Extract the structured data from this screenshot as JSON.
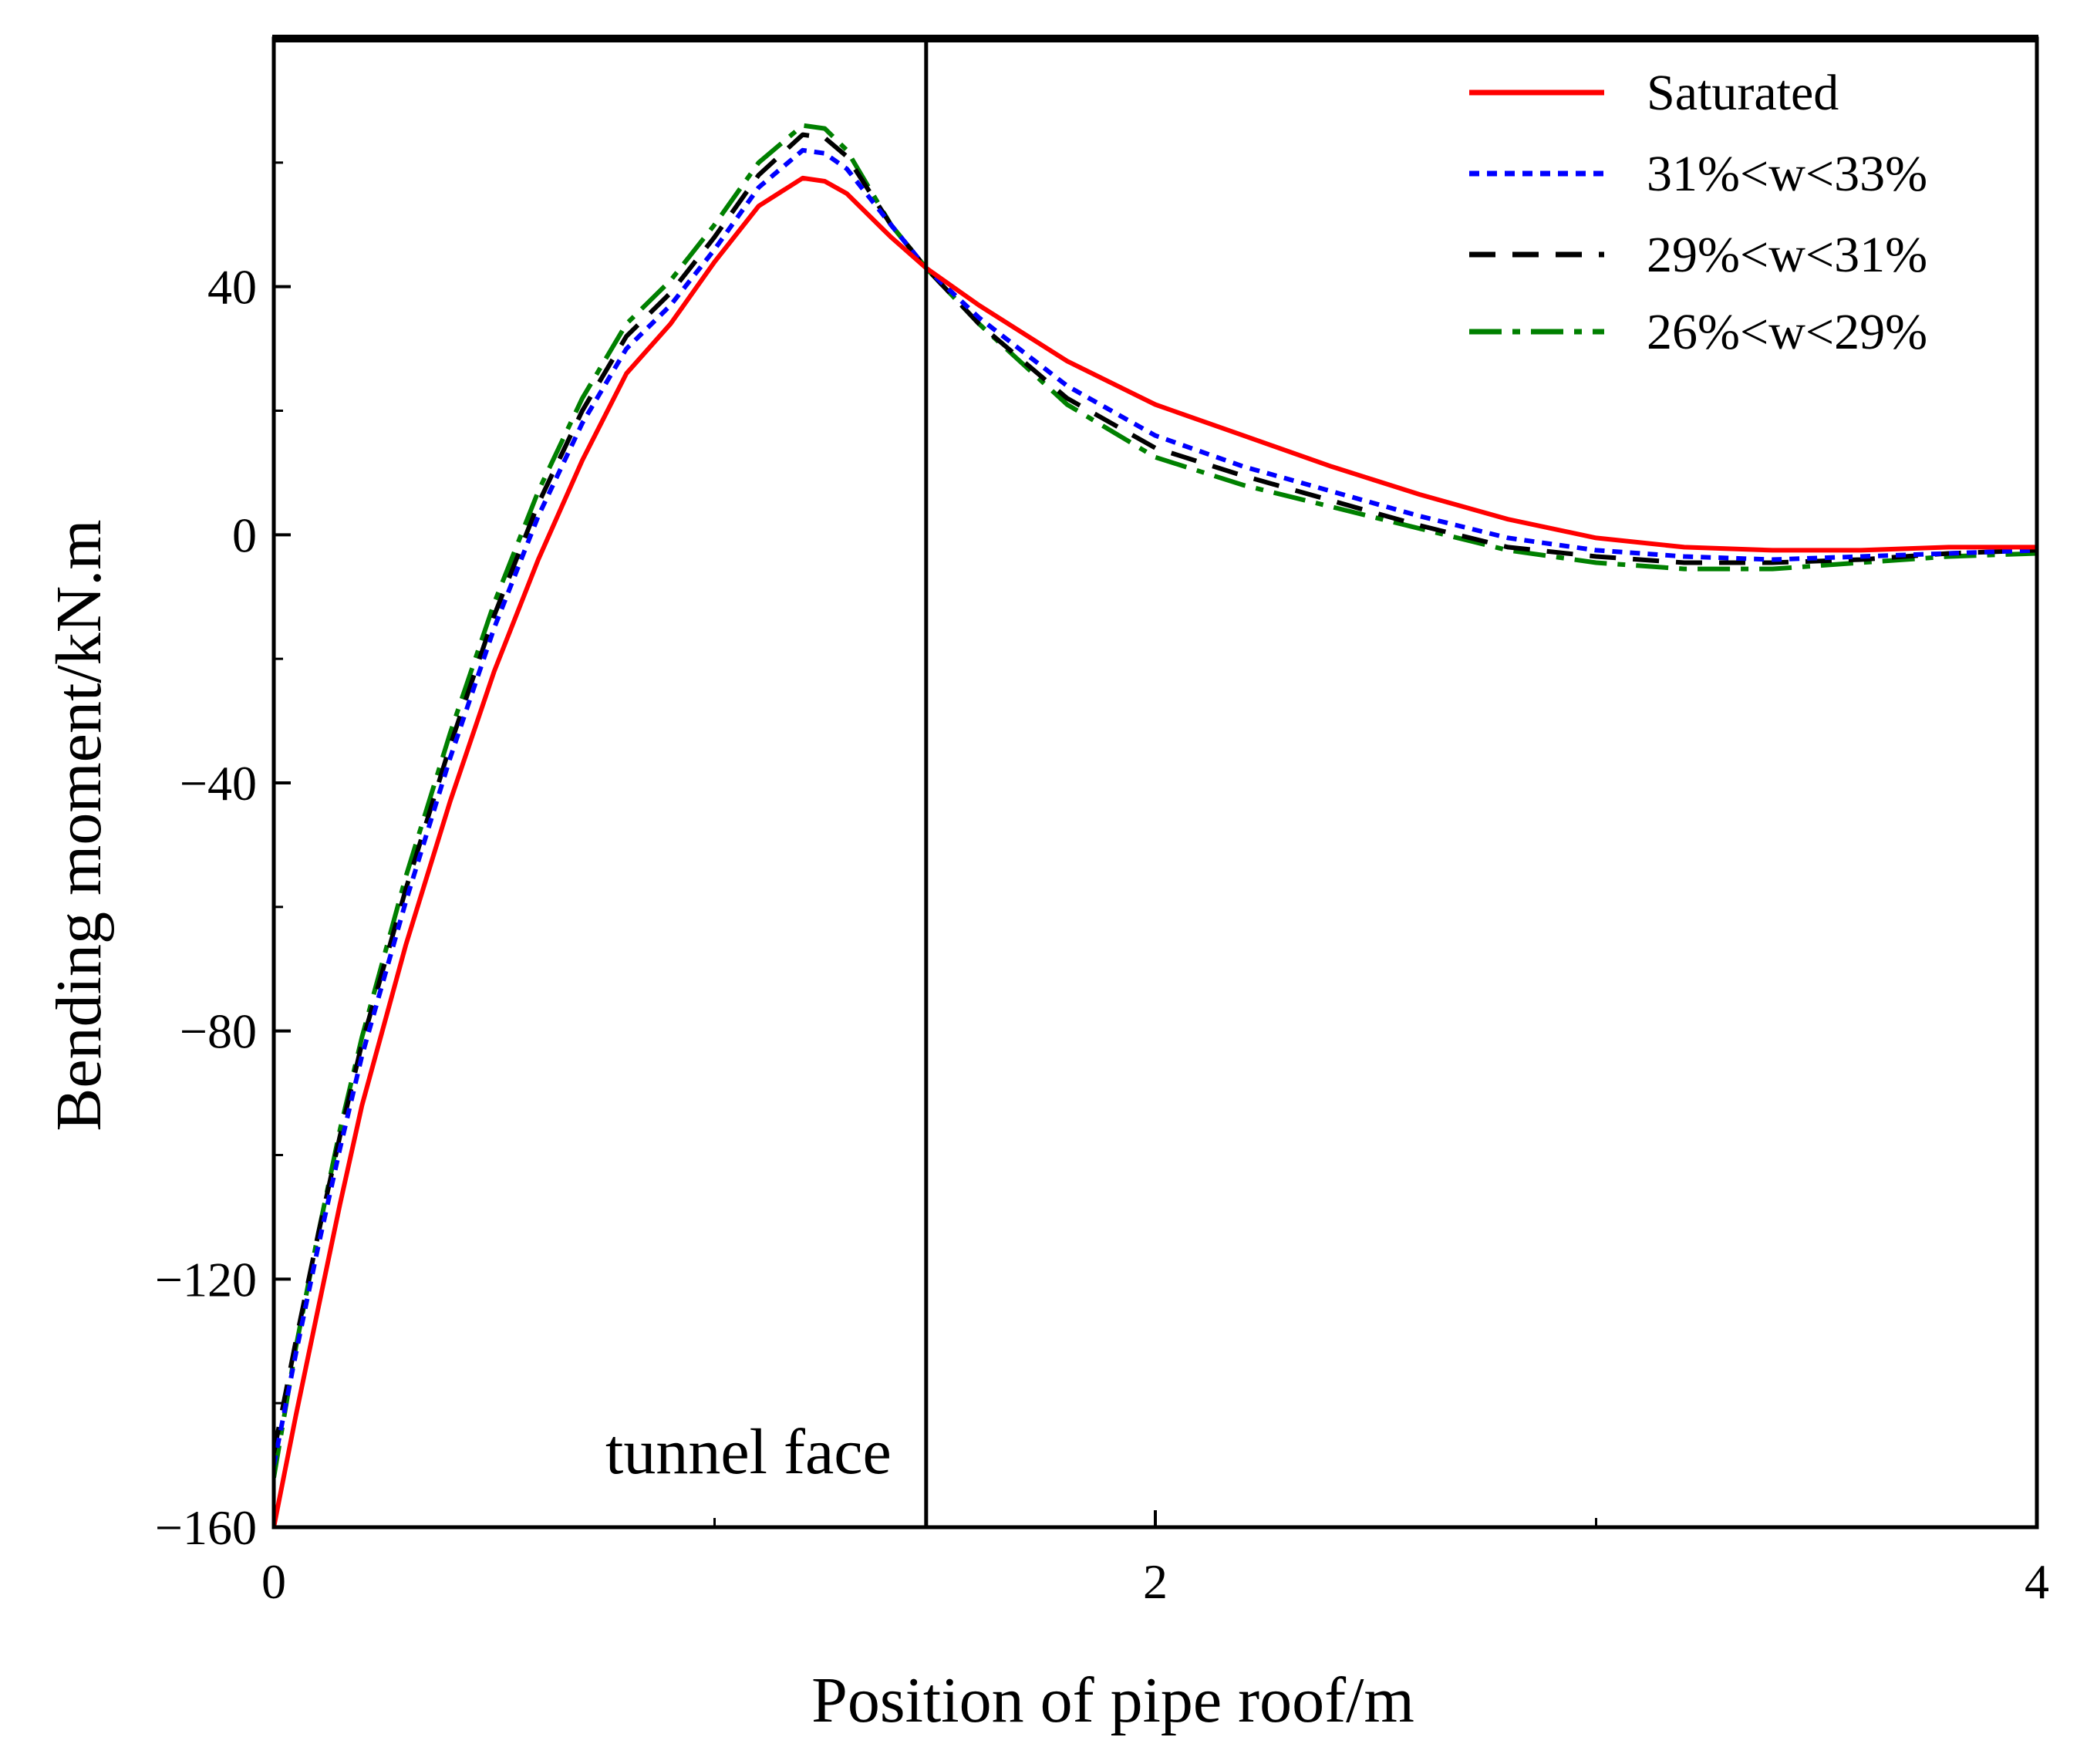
{
  "chart_data": {
    "type": "line",
    "title": "",
    "xlabel": "Position of pipe roof/m",
    "ylabel": "Bending moment/kN.m",
    "xlim": [
      0,
      4
    ],
    "ylim": [
      -160,
      80
    ],
    "x_ticks": [
      0,
      2,
      4
    ],
    "x_tick_labels": [
      "0",
      "2",
      "4"
    ],
    "x_minor_ticks": [
      1,
      3
    ],
    "y_ticks": [
      -160,
      -120,
      -80,
      -40,
      0,
      40
    ],
    "y_tick_labels": [
      "-160",
      "-120",
      "-80",
      "-40",
      "0",
      "40"
    ],
    "y_minor_ticks": [
      -140,
      -100,
      -60,
      -20,
      20,
      60
    ],
    "grid": false,
    "legend_position": "top-right",
    "annotations": [
      {
        "text": "tunnel face",
        "x": 1.48,
        "type": "vertical-line"
      }
    ],
    "series": [
      {
        "name": "Saturated",
        "color": "#ff0000",
        "style": "solid",
        "points": [
          [
            0,
            -160
          ],
          [
            0.05,
            -142
          ],
          [
            0.1,
            -125
          ],
          [
            0.15,
            -108
          ],
          [
            0.2,
            -92
          ],
          [
            0.3,
            -66
          ],
          [
            0.4,
            -43
          ],
          [
            0.5,
            -22
          ],
          [
            0.6,
            -4
          ],
          [
            0.7,
            12
          ],
          [
            0.8,
            26
          ],
          [
            0.9,
            34
          ],
          [
            1.0,
            44
          ],
          [
            1.1,
            53
          ],
          [
            1.2,
            57.5
          ],
          [
            1.25,
            57
          ],
          [
            1.3,
            55
          ],
          [
            1.4,
            48
          ],
          [
            1.48,
            43
          ],
          [
            1.6,
            37
          ],
          [
            1.8,
            28
          ],
          [
            2.0,
            21
          ],
          [
            2.2,
            16
          ],
          [
            2.4,
            11
          ],
          [
            2.6,
            6.5
          ],
          [
            2.8,
            2.5
          ],
          [
            3.0,
            -0.5
          ],
          [
            3.2,
            -2
          ],
          [
            3.4,
            -2.5
          ],
          [
            3.6,
            -2.5
          ],
          [
            3.8,
            -2
          ],
          [
            4.0,
            -2
          ]
        ]
      },
      {
        "name": "31%<w<33%",
        "color": "#0000ff",
        "style": "dotted",
        "points": [
          [
            0,
            -150
          ],
          [
            0.05,
            -132
          ],
          [
            0.1,
            -115
          ],
          [
            0.15,
            -99
          ],
          [
            0.2,
            -84
          ],
          [
            0.3,
            -59
          ],
          [
            0.4,
            -36
          ],
          [
            0.5,
            -15
          ],
          [
            0.6,
            3
          ],
          [
            0.7,
            18
          ],
          [
            0.8,
            30
          ],
          [
            0.9,
            37
          ],
          [
            1.0,
            46
          ],
          [
            1.1,
            56
          ],
          [
            1.2,
            62
          ],
          [
            1.25,
            61.5
          ],
          [
            1.3,
            59
          ],
          [
            1.4,
            50
          ],
          [
            1.48,
            43
          ],
          [
            1.6,
            35
          ],
          [
            1.8,
            24
          ],
          [
            2.0,
            16
          ],
          [
            2.2,
            11
          ],
          [
            2.4,
            7
          ],
          [
            2.6,
            3
          ],
          [
            2.8,
            -0.5
          ],
          [
            3.0,
            -2.5
          ],
          [
            3.2,
            -3.5
          ],
          [
            3.4,
            -4
          ],
          [
            3.6,
            -3.5
          ],
          [
            3.8,
            -3
          ],
          [
            4.0,
            -2.5
          ]
        ]
      },
      {
        "name": "29%<w<31%",
        "color": "#000000",
        "style": "dashed",
        "points": [
          [
            0,
            -148
          ],
          [
            0.05,
            -130
          ],
          [
            0.1,
            -113
          ],
          [
            0.15,
            -97
          ],
          [
            0.2,
            -82
          ],
          [
            0.3,
            -57
          ],
          [
            0.4,
            -34
          ],
          [
            0.5,
            -13
          ],
          [
            0.6,
            5
          ],
          [
            0.7,
            20
          ],
          [
            0.8,
            32
          ],
          [
            0.9,
            39
          ],
          [
            1.0,
            48
          ],
          [
            1.1,
            58
          ],
          [
            1.2,
            64.5
          ],
          [
            1.25,
            64
          ],
          [
            1.3,
            61
          ],
          [
            1.4,
            50
          ],
          [
            1.48,
            43
          ],
          [
            1.6,
            34
          ],
          [
            1.8,
            22
          ],
          [
            2.0,
            14
          ],
          [
            2.2,
            9.5
          ],
          [
            2.4,
            5.5
          ],
          [
            2.6,
            1.5
          ],
          [
            2.8,
            -2
          ],
          [
            3.0,
            -3.5
          ],
          [
            3.2,
            -4.5
          ],
          [
            3.4,
            -4.5
          ],
          [
            3.6,
            -4
          ],
          [
            3.8,
            -3
          ],
          [
            4.0,
            -2.5
          ]
        ]
      },
      {
        "name": "26%<w<29%",
        "color": "#008000",
        "style": "dashdot",
        "points": [
          [
            0,
            -152
          ],
          [
            0.05,
            -131
          ],
          [
            0.1,
            -113
          ],
          [
            0.15,
            -96
          ],
          [
            0.2,
            -81
          ],
          [
            0.3,
            -55
          ],
          [
            0.4,
            -32
          ],
          [
            0.5,
            -11
          ],
          [
            0.6,
            7
          ],
          [
            0.7,
            22
          ],
          [
            0.8,
            34
          ],
          [
            0.9,
            41
          ],
          [
            1.0,
            50
          ],
          [
            1.1,
            60
          ],
          [
            1.2,
            66
          ],
          [
            1.25,
            65.5
          ],
          [
            1.3,
            62
          ],
          [
            1.4,
            50
          ],
          [
            1.48,
            43
          ],
          [
            1.6,
            34
          ],
          [
            1.8,
            21
          ],
          [
            2.0,
            12.5
          ],
          [
            2.2,
            8
          ],
          [
            2.4,
            4.5
          ],
          [
            2.6,
            1
          ],
          [
            2.8,
            -2.5
          ],
          [
            3.0,
            -4.5
          ],
          [
            3.2,
            -5.5
          ],
          [
            3.4,
            -5.5
          ],
          [
            3.6,
            -4.5
          ],
          [
            3.8,
            -3.5
          ],
          [
            4.0,
            -3
          ]
        ]
      }
    ]
  }
}
